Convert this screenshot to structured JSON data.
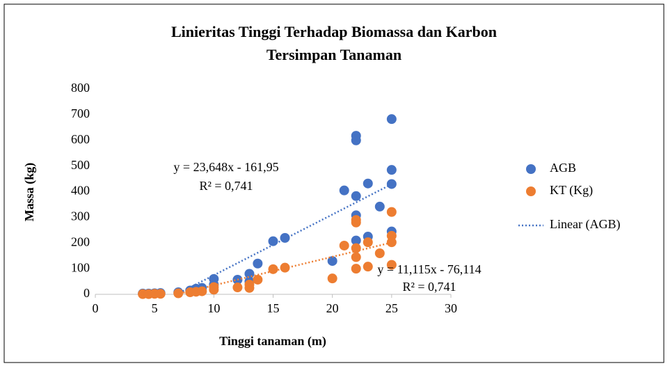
{
  "chart_data": {
    "type": "scatter",
    "title": [
      "Linieritas Tinggi Terhadap Biomassa dan Karbon",
      "Tersimpan Tanaman"
    ],
    "xlabel": "Tinggi tanaman (m)",
    "ylabel": "Massa (kg)",
    "xlim": [
      0,
      30
    ],
    "xticks": [
      0,
      5,
      10,
      15,
      20,
      25,
      30
    ],
    "ylim": [
      0,
      800
    ],
    "yticks": [
      0,
      100,
      200,
      300,
      400,
      500,
      600,
      700,
      800
    ],
    "grid": false,
    "legend": "right",
    "series": [
      {
        "name": "AGB",
        "color": "#4472c4",
        "x": [
          4,
          4.5,
          5,
          5.5,
          7,
          8,
          8.5,
          9,
          10,
          10,
          12,
          13,
          13,
          13.7,
          15,
          16,
          20,
          21,
          22,
          22,
          22,
          22,
          22,
          23,
          23,
          24,
          25,
          25,
          25,
          25
        ],
        "values": [
          3,
          3,
          4,
          5,
          8,
          15,
          22,
          25,
          60,
          38,
          57,
          80,
          50,
          120,
          207,
          220,
          130,
          405,
          618,
          600,
          383,
          308,
          210,
          432,
          225,
          342,
          683,
          485,
          430,
          245
        ],
        "trendline": {
          "name": "Linear (AGB)",
          "slope": 23.648,
          "intercept": -161.95,
          "equation": "y = 23,648x - 161,95",
          "r2_label": "R² = 0,741"
        }
      },
      {
        "name": "KT (Kg)",
        "color": "#ed7d31",
        "x": [
          4,
          4.5,
          5,
          5.5,
          7,
          8,
          8.5,
          9,
          10,
          10,
          12,
          13,
          13,
          13.7,
          15,
          16,
          20,
          21,
          22,
          22,
          22,
          22,
          22,
          23,
          23,
          24,
          25,
          25,
          25,
          25
        ],
        "values": [
          1,
          1,
          2,
          2,
          4,
          8,
          10,
          12,
          28,
          18,
          27,
          38,
          25,
          57,
          98,
          104,
          62,
          190,
          290,
          280,
          180,
          145,
          100,
          203,
          108,
          160,
          321,
          228,
          203,
          115
        ],
        "trendline": {
          "slope": 11.115,
          "intercept": -76.114,
          "equation": "y = 11,115x - 76,114",
          "r2_label": "R² = 0,741"
        }
      }
    ]
  }
}
